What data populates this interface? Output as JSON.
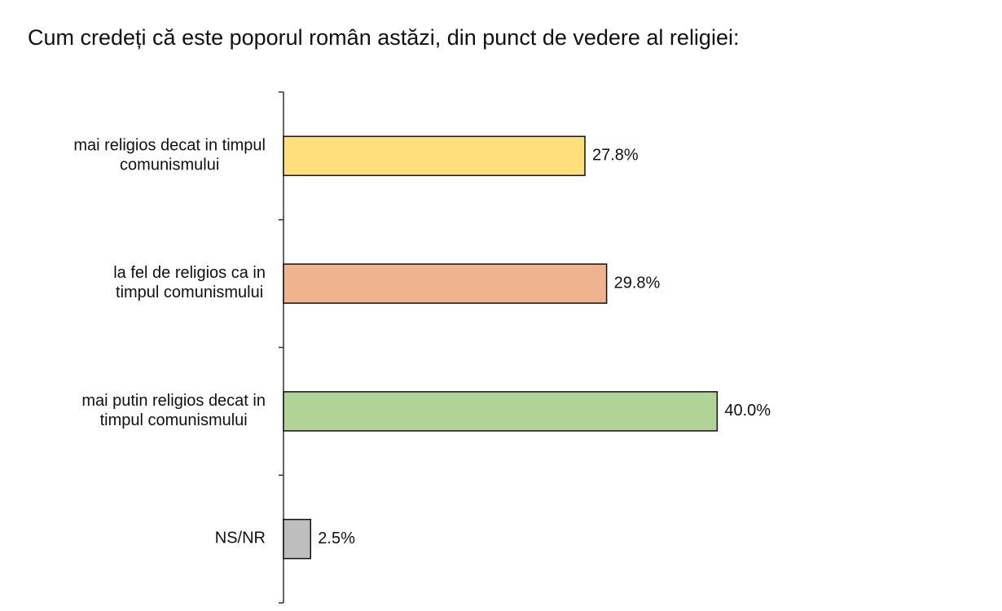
{
  "chart_data": {
    "type": "bar",
    "orientation": "horizontal",
    "title": "Cum credeți că este poporul român astăzi, din punct de vedere al religiei:",
    "categories": [
      [
        "mai religios decat in timpul",
        "comunismului"
      ],
      [
        "la fel de religios ca in",
        "timpul comunismului"
      ],
      [
        "mai putin religios decat in",
        "timpul comunismului"
      ],
      [
        "NS/NR"
      ]
    ],
    "values": [
      27.8,
      29.8,
      40.0,
      2.5
    ],
    "value_labels": [
      "27.8%",
      "29.8%",
      "40.0%",
      "2.5%"
    ],
    "colors": [
      "#FFDE7B",
      "#EFB48D",
      "#B1D396",
      "#BEBEBE"
    ],
    "bar_border_color": "#111111",
    "xlim": [
      0,
      50
    ],
    "grid": false,
    "legend": "none"
  }
}
